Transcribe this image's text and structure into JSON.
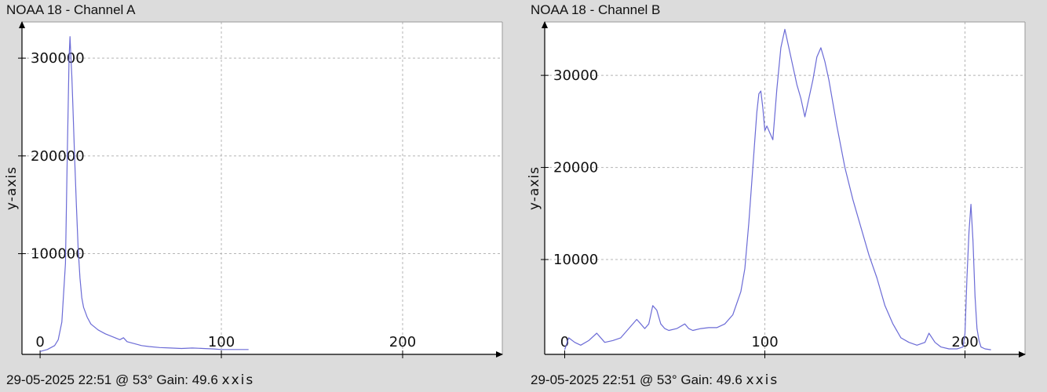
{
  "chart_data": [
    {
      "type": "line",
      "title": "NOAA 18 - Channel A",
      "footer": "29-05-2025 22:51 @ 53° Gain: 49.6",
      "xlabel": "x-axis",
      "ylabel": "y-axis",
      "xlim": [
        -10,
        255
      ],
      "ylim": [
        -3000,
        337000
      ],
      "x_ticks": [
        0,
        100,
        200
      ],
      "y_ticks": [
        100000,
        200000,
        300000
      ],
      "x_tick_labels": [
        "0",
        "100",
        "200"
      ],
      "y_tick_labels": [
        "100000",
        "200000",
        "300000"
      ],
      "grid": true,
      "line_color": "#6b6bd6",
      "series": [
        {
          "x": [
            0,
            4,
            8,
            10,
            12,
            14,
            15,
            16,
            16.5,
            17,
            17.5,
            18,
            19,
            20,
            21,
            22,
            23,
            24,
            26,
            28,
            32,
            36,
            40,
            44,
            46,
            48,
            52,
            56,
            60,
            66,
            72,
            78,
            84,
            90,
            96,
            100,
            106,
            112,
            115
          ],
          "y": [
            0,
            2000,
            6000,
            12000,
            30000,
            90000,
            200000,
            300000,
            322000,
            300000,
            282000,
            255000,
            200000,
            150000,
            105000,
            75000,
            55000,
            45000,
            35000,
            28000,
            22000,
            18000,
            15000,
            12000,
            14000,
            10000,
            8000,
            6000,
            5000,
            4000,
            3500,
            3000,
            3500,
            3000,
            2500,
            2000,
            2000,
            2000,
            2000
          ]
        }
      ]
    },
    {
      "type": "line",
      "title": "NOAA 18 - Channel B",
      "footer": "29-05-2025 22:51 @ 53° Gain: 49.6",
      "xlabel": "x-axis",
      "ylabel": "y-axis",
      "xlim": [
        -10,
        230
      ],
      "ylim": [
        -300,
        35800
      ],
      "x_ticks": [
        0,
        100,
        200
      ],
      "y_ticks": [
        10000,
        20000,
        30000
      ],
      "x_tick_labels": [
        "0",
        "100",
        "200"
      ],
      "y_tick_labels": [
        "10000",
        "20000",
        "30000"
      ],
      "grid": true,
      "line_color": "#6b6bd6",
      "series": [
        {
          "x": [
            0,
            2,
            5,
            8,
            12,
            16,
            20,
            24,
            28,
            32,
            36,
            38,
            40,
            42,
            44,
            46,
            48,
            50,
            52,
            56,
            60,
            62,
            64,
            68,
            72,
            76,
            80,
            84,
            88,
            90,
            92,
            94,
            96,
            97,
            98,
            99,
            100,
            101,
            102,
            104,
            106,
            108,
            110,
            112,
            114,
            116,
            118,
            120,
            122,
            124,
            126,
            128,
            130,
            132,
            134,
            136,
            140,
            144,
            148,
            152,
            156,
            160,
            164,
            168,
            172,
            176,
            180,
            182,
            185,
            188,
            192,
            196,
            199,
            200,
            201,
            202,
            203,
            204,
            205,
            206,
            207,
            208,
            210,
            213
          ],
          "y": [
            200,
            1500,
            1000,
            700,
            1200,
            2000,
            1000,
            1200,
            1500,
            2500,
            3500,
            3000,
            2500,
            3000,
            5000,
            4500,
            3000,
            2500,
            2300,
            2500,
            3000,
            2500,
            2300,
            2500,
            2600,
            2600,
            3000,
            4000,
            6500,
            9000,
            14000,
            20000,
            26000,
            28000,
            28300,
            26500,
            24000,
            24500,
            24000,
            23000,
            28500,
            33000,
            35000,
            33000,
            31000,
            29000,
            27500,
            25500,
            27500,
            29500,
            32000,
            33000,
            31500,
            29500,
            27000,
            24500,
            20000,
            16500,
            13500,
            10500,
            8000,
            5000,
            3000,
            1500,
            1000,
            700,
            1000,
            2000,
            1000,
            500,
            300,
            300,
            500,
            2000,
            8000,
            13000,
            16000,
            12000,
            6000,
            2500,
            1200,
            500,
            300,
            200
          ]
        }
      ]
    }
  ]
}
